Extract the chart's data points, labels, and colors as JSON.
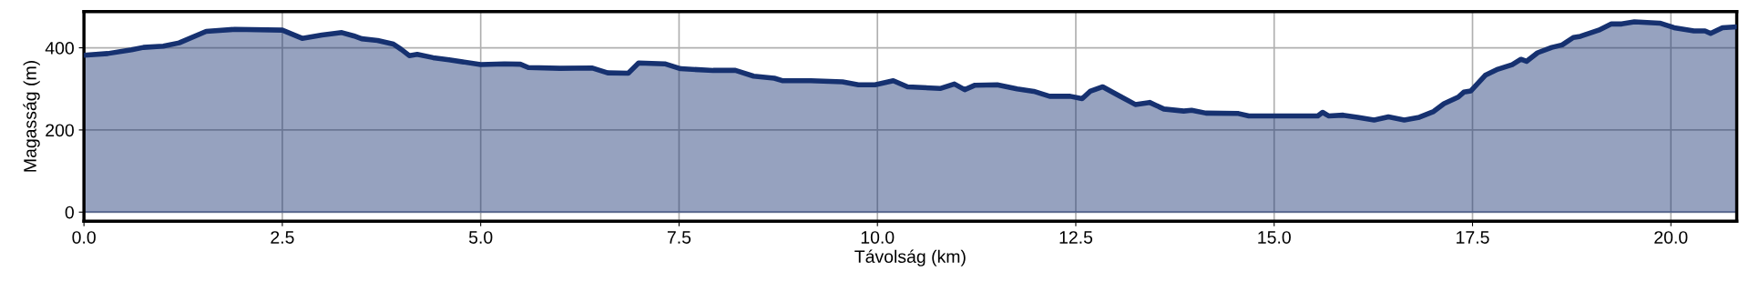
{
  "chart_data": {
    "type": "area",
    "xlabel": "Távolság (km)",
    "ylabel": "Magasság (m)",
    "xlim": [
      0,
      20.83
    ],
    "ylim": [
      -22,
      488
    ],
    "xticks": [
      {
        "value": 0,
        "label": "0.0"
      },
      2.5,
      {
        "value": 5,
        "label": "5.0"
      },
      7.5,
      {
        "value": 10,
        "label": "10.0"
      },
      12.5,
      {
        "value": 15,
        "label": "15.0"
      },
      17.5,
      {
        "value": 20,
        "label": "20.0"
      }
    ],
    "yticks": [
      0,
      200,
      400
    ],
    "grid": true,
    "series": [
      {
        "color": "#163170",
        "x": [
          0.0,
          0.3,
          0.6,
          0.75,
          1.0,
          1.2,
          1.54,
          1.9,
          2.5,
          2.75,
          3.0,
          3.25,
          3.4,
          3.5,
          3.7,
          3.9,
          4.0,
          4.1,
          4.2,
          4.4,
          4.6,
          5.0,
          5.3,
          5.5,
          5.6,
          6.0,
          6.4,
          6.6,
          6.86,
          6.99,
          7.32,
          7.52,
          7.93,
          8.21,
          8.44,
          8.7,
          8.8,
          9.16,
          9.56,
          9.76,
          9.97,
          10.2,
          10.38,
          10.79,
          10.97,
          11.1,
          11.23,
          11.51,
          11.76,
          11.97,
          12.17,
          12.43,
          12.58,
          12.68,
          12.84,
          13.04,
          13.25,
          13.43,
          13.61,
          13.86,
          13.96,
          14.14,
          14.55,
          14.68,
          15.0,
          15.55,
          15.61,
          15.69,
          15.87,
          16.05,
          16.26,
          16.44,
          16.64,
          16.83,
          17.01,
          17.14,
          17.32,
          17.39,
          17.48,
          17.66,
          17.82,
          18.0,
          18.11,
          18.18,
          18.32,
          18.5,
          18.63,
          18.77,
          18.86,
          19.09,
          19.25,
          19.38,
          19.54,
          19.86,
          20.04,
          20.29,
          20.43,
          20.5,
          20.65,
          20.83
        ],
        "values": [
          382,
          386,
          395,
          401,
          404,
          412,
          440,
          445,
          443,
          423,
          431,
          437,
          429,
          422,
          418,
          409,
          396,
          381,
          384,
          376,
          371,
          359,
          361,
          360,
          352,
          350,
          351,
          339,
          338,
          363,
          361,
          349,
          345,
          345,
          331,
          326,
          320,
          320,
          317,
          310,
          310,
          320,
          305,
          301,
          312,
          298,
          309,
          310,
          300,
          294,
          282,
          282,
          276,
          294,
          305,
          284,
          262,
          267,
          251,
          246,
          248,
          241,
          240,
          234,
          234,
          234,
          243,
          234,
          236,
          231,
          224,
          232,
          224,
          231,
          245,
          264,
          280,
          292,
          295,
          333,
          348,
          359,
          372,
          367,
          388,
          401,
          407,
          425,
          428,
          443,
          458,
          458,
          463,
          460,
          449,
          441,
          441,
          435,
          449,
          451
        ]
      }
    ]
  }
}
